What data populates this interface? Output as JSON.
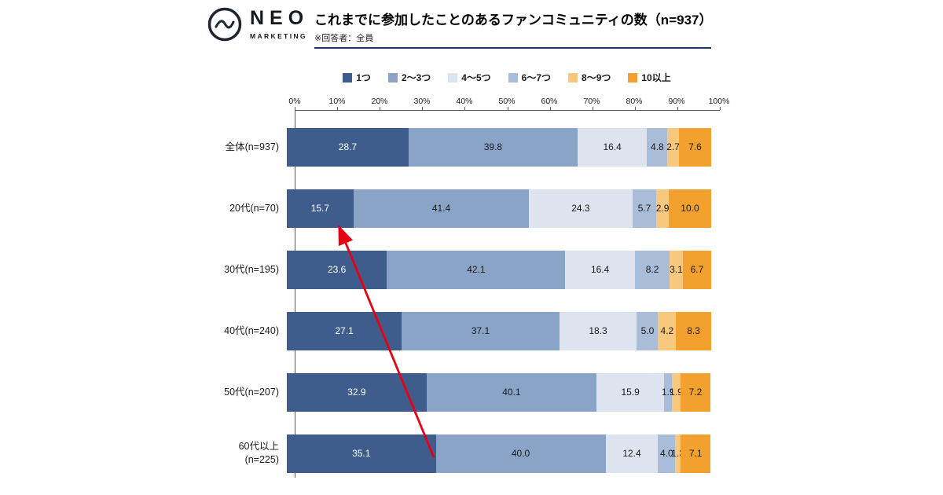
{
  "header": {
    "logo_name": "NEO",
    "logo_sub": "MARKETING",
    "title": "これまでに参加したことのあるファンコミュニティの数（n=937）",
    "subtitle": "※回答者：全員"
  },
  "chart_data": {
    "type": "bar",
    "stacked": true,
    "orientation": "horizontal",
    "unit": "%",
    "xlim": [
      0,
      100
    ],
    "grid": false,
    "legend_position": "top",
    "x_ticks": [
      "0%",
      "10%",
      "20%",
      "30%",
      "40%",
      "50%",
      "60%",
      "70%",
      "80%",
      "90%",
      "100%"
    ],
    "categories": [
      "全体(n=937)",
      "20代(n=70)",
      "30代(n=195)",
      "40代(n=240)",
      "50代(n=207)",
      "60代以上\n(n=225)"
    ],
    "series": [
      {
        "name": "1つ",
        "color": "#3e5c8c",
        "label_color": "#ffffff",
        "values": [
          28.7,
          15.7,
          23.6,
          27.1,
          32.9,
          35.1
        ]
      },
      {
        "name": "2～3つ",
        "color": "#8aa4c8",
        "label_color": "#1a1a1a",
        "values": [
          39.8,
          41.4,
          42.1,
          37.1,
          40.1,
          40.0
        ]
      },
      {
        "name": "4～5つ",
        "color": "#dde4ef",
        "label_color": "#1a1a1a",
        "values": [
          16.4,
          24.3,
          16.4,
          18.3,
          15.9,
          12.4
        ]
      },
      {
        "name": "6～7つ",
        "color": "#a9bdd9",
        "label_color": "#1a1a1a",
        "values": [
          4.8,
          5.7,
          8.2,
          5.0,
          1.9,
          4.0
        ]
      },
      {
        "name": "8～9つ",
        "color": "#f9c87f",
        "label_color": "#1a1a1a",
        "values": [
          2.7,
          2.9,
          3.1,
          4.2,
          1.9,
          1.3
        ]
      },
      {
        "name": "10以上",
        "color": "#f2a12e",
        "label_color": "#1a1a1a",
        "values": [
          7.6,
          10.0,
          6.7,
          8.3,
          7.2,
          7.1
        ]
      }
    ]
  },
  "annotation": {
    "type": "arrow",
    "color": "#e60012",
    "points_to": "20代 1つ 15.7"
  }
}
